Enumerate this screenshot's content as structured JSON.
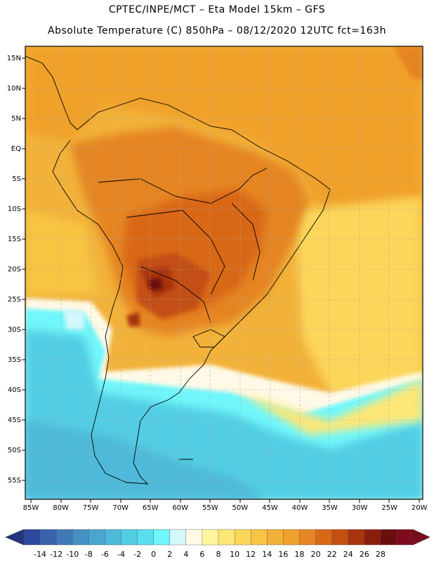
{
  "title_line1": "CPTEC/INPE/MCT –  Eta Model 15km – GFS",
  "title_line2": "Absolute Temperature (C) 850hPa – 08/12/2020 12UTC fct=163h",
  "lat_labels": [
    "15N",
    "10N",
    "5N",
    "EQ",
    "5S",
    "10S",
    "15S",
    "20S",
    "25S",
    "30S",
    "35S",
    "40S",
    "45S",
    "50S",
    "55S"
  ],
  "lon_labels": [
    "85W",
    "80W",
    "75W",
    "70W",
    "65W",
    "60W",
    "55W",
    "50W",
    "45W",
    "40W",
    "35W",
    "30W",
    "25W",
    "20W"
  ],
  "colorbar": {
    "labels": [
      "-14",
      "-12",
      "-10",
      "-8",
      "-6",
      "-4",
      "-2",
      "0",
      "2",
      "4",
      "6",
      "8",
      "10",
      "12",
      "14",
      "16",
      "18",
      "20",
      "22",
      "24",
      "26",
      "28"
    ],
    "colors": [
      "#2d4aa0",
      "#3a62ad",
      "#3f79b8",
      "#4690c4",
      "#4aa6cf",
      "#4fb9d9",
      "#52cde3",
      "#5adff0",
      "#6ff7fb",
      "#d4f7fb",
      "#fff9e6",
      "#fef59e",
      "#fde777",
      "#fbd65a",
      "#f8c542",
      "#f2b23a",
      "#f0a12c",
      "#e58524",
      "#d96817",
      "#c34f12",
      "#a9340f",
      "#8a1e0d",
      "#6b0f0e",
      "#7f0c1c"
    ],
    "under_color": "#22357c",
    "over_color": "#7a0d20"
  }
}
